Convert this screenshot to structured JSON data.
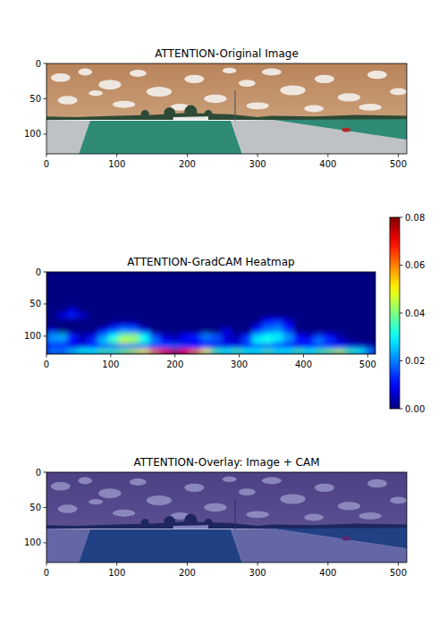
{
  "chart_data": [
    {
      "type": "image",
      "title": "ATTENTION-Original Image",
      "xlim": [
        0,
        512
      ],
      "ylim": [
        128,
        0
      ],
      "xticks": [
        0,
        100,
        200,
        300,
        400,
        500
      ],
      "yticks": [
        0,
        50,
        100
      ]
    },
    {
      "type": "heatmap",
      "title": "ATTENTION-GradCAM Heatmap",
      "xlim": [
        0,
        512
      ],
      "ylim": [
        128,
        0
      ],
      "xticks": [
        0,
        100,
        200,
        300,
        400,
        500
      ],
      "yticks": [
        0,
        50,
        100
      ],
      "xbins": [
        0,
        16,
        32,
        48,
        64,
        80,
        96,
        112,
        128,
        144,
        160,
        176,
        192,
        208,
        224,
        240,
        256,
        272,
        288,
        304,
        320,
        336,
        352,
        368,
        384,
        400,
        416,
        432,
        448,
        464,
        480,
        496,
        512
      ],
      "ybins": [
        0,
        8,
        16,
        24,
        32,
        40,
        48,
        56,
        64,
        72,
        80,
        88,
        96,
        104,
        112,
        120,
        128
      ],
      "cells": [
        [
          0,
          0,
          0,
          0,
          0,
          0,
          0,
          0,
          0,
          0,
          0,
          0,
          0,
          0,
          0,
          0,
          0,
          0,
          0,
          0,
          0,
          0,
          0,
          0,
          0,
          0,
          0,
          0,
          0,
          0,
          0,
          0
        ],
        [
          0,
          0,
          0,
          0,
          0,
          0,
          0,
          0,
          0,
          0,
          0,
          0,
          0,
          0,
          0,
          0,
          0,
          0,
          0,
          0,
          0,
          0,
          0,
          0,
          0,
          0,
          0,
          0,
          0,
          0,
          0,
          0
        ],
        [
          0,
          0,
          0,
          0,
          0,
          0,
          0,
          0,
          0,
          0,
          0,
          0,
          0,
          0,
          0,
          0,
          0,
          0,
          0,
          0,
          0,
          0,
          0,
          0,
          0,
          0,
          0,
          0,
          0,
          0,
          0,
          0
        ],
        [
          0,
          0,
          0,
          0,
          0,
          0,
          0,
          0,
          0,
          0,
          0,
          0,
          0,
          0,
          0,
          0,
          0,
          0,
          0,
          0,
          0,
          0,
          0,
          0,
          0,
          0,
          0,
          0,
          0,
          0,
          0,
          0
        ],
        [
          0,
          0,
          0,
          0,
          0,
          0,
          0,
          0,
          0,
          0,
          0,
          0,
          0,
          0,
          0,
          0,
          0,
          0,
          0,
          0,
          0,
          0,
          0,
          0,
          0,
          0,
          0,
          0,
          0,
          0,
          0,
          0
        ],
        [
          0,
          0,
          0,
          0,
          0,
          0,
          0,
          0,
          0,
          0,
          0,
          0,
          0,
          0,
          0,
          0,
          0,
          0,
          0,
          0,
          0,
          0,
          0,
          0,
          0,
          0,
          0,
          0,
          0,
          0,
          0,
          0
        ],
        [
          0,
          0,
          0,
          0,
          0,
          0,
          0,
          0,
          0,
          0,
          0,
          0,
          0,
          0,
          0,
          0,
          0,
          0,
          0,
          0,
          0,
          0,
          0,
          0,
          0,
          0,
          0,
          0,
          0,
          0,
          0,
          0
        ],
        [
          0,
          0,
          0.008,
          0,
          0,
          0,
          0,
          0,
          0,
          0,
          0,
          0,
          0,
          0,
          0,
          0,
          0,
          0,
          0,
          0,
          0,
          0,
          0,
          0,
          0,
          0,
          0,
          0,
          0,
          0,
          0,
          0
        ],
        [
          0,
          0.008,
          0.012,
          0.006,
          0,
          0,
          0,
          0,
          0,
          0,
          0,
          0,
          0,
          0,
          0,
          0,
          0,
          0,
          0,
          0,
          0,
          0,
          0,
          0,
          0,
          0,
          0,
          0,
          0,
          0,
          0,
          0
        ],
        [
          0,
          0,
          0,
          0,
          0,
          0,
          0,
          0,
          0,
          0,
          0,
          0,
          0,
          0,
          0,
          0,
          0,
          0,
          0,
          0,
          0,
          0.01,
          0.012,
          0.006,
          0,
          0,
          0,
          0,
          0,
          0,
          0,
          0
        ],
        [
          0,
          0,
          0,
          0,
          0,
          0,
          0.008,
          0.012,
          0.01,
          0,
          0,
          0,
          0,
          0,
          0,
          0,
          0,
          0,
          0,
          0,
          0.008,
          0.016,
          0.018,
          0.01,
          0,
          0,
          0,
          0,
          0,
          0,
          0,
          0
        ],
        [
          0.008,
          0,
          0,
          0,
          0,
          0.01,
          0.016,
          0.022,
          0.02,
          0.012,
          0,
          0,
          0,
          0,
          0,
          0,
          0,
          0.008,
          0,
          0,
          0.012,
          0.02,
          0.022,
          0.014,
          0,
          0,
          0,
          0,
          0,
          0,
          0,
          0
        ],
        [
          0.022,
          0.024,
          0.012,
          0.004,
          0.008,
          0.02,
          0.03,
          0.04,
          0.042,
          0.03,
          0.015,
          0.006,
          0.004,
          0.01,
          0.012,
          0.02,
          0.016,
          0.006,
          0.004,
          0.012,
          0.026,
          0.03,
          0.03,
          0.022,
          0.01,
          0.006,
          0.014,
          0.01,
          0.004,
          0,
          0,
          0
        ],
        [
          0.02,
          0.02,
          0.01,
          0.006,
          0.014,
          0.026,
          0.036,
          0.046,
          0.042,
          0.032,
          0.02,
          0.01,
          0.006,
          0.008,
          0.01,
          0.016,
          0.016,
          0.008,
          0.006,
          0.016,
          0.03,
          0.032,
          0.026,
          0.02,
          0.012,
          0.012,
          0.02,
          0.014,
          0.006,
          0.002,
          0,
          0
        ],
        [
          0.01,
          0.01,
          0.008,
          0.008,
          0.01,
          0.012,
          0.014,
          0.016,
          0.016,
          0.014,
          0.014,
          0.016,
          0.016,
          0.014,
          0.01,
          0.01,
          0.008,
          0.008,
          0.008,
          0.01,
          0.012,
          0.012,
          0.01,
          0.01,
          0.008,
          0.01,
          0.012,
          0.012,
          0.01,
          0.008,
          0.006,
          0.004
        ],
        [
          0.02,
          0.02,
          0.025,
          0.03,
          0.03,
          0.035,
          0.035,
          0.04,
          0.045,
          0.05,
          0.06,
          0.07,
          0.075,
          0.07,
          0.06,
          0.05,
          0.035,
          0.03,
          0.035,
          0.03,
          0.03,
          0.035,
          0.03,
          0.03,
          0.035,
          0.03,
          0.035,
          0.04,
          0.045,
          0.035,
          0.03,
          0.02
        ]
      ],
      "colorbar": {
        "range": [
          0,
          0.08
        ],
        "ticks": [
          {
            "value": 0,
            "label": "0.00"
          },
          {
            "value": 0.02,
            "label": "0.02"
          },
          {
            "value": 0.04,
            "label": "0.04"
          },
          {
            "value": 0.06,
            "label": "0.06"
          },
          {
            "value": 0.08,
            "label": "0.08"
          }
        ]
      }
    },
    {
      "type": "overlay",
      "title": "ATTENTION-Overlay: Image + CAM",
      "xlim": [
        0,
        512
      ],
      "ylim": [
        128,
        0
      ],
      "xticks": [
        0,
        100,
        200,
        300,
        400,
        500
      ],
      "yticks": [
        0,
        50,
        100
      ]
    }
  ]
}
